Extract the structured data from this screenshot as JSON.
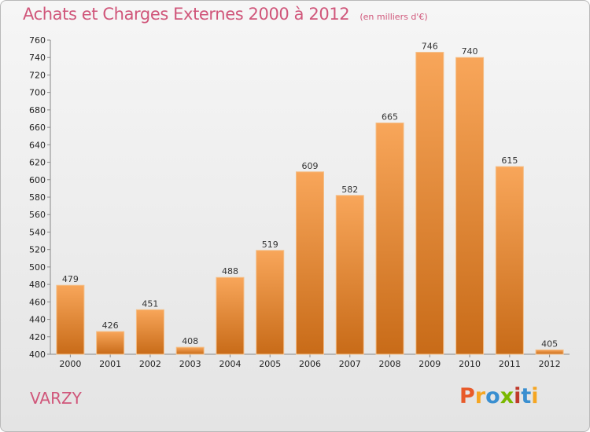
{
  "chart_data": {
    "type": "bar",
    "title": "Achats et Charges Externes 2000 à 2012",
    "subtitle": "(en milliers d'€)",
    "xlabel": "",
    "ylabel": "",
    "categories": [
      "2000",
      "2001",
      "2002",
      "2003",
      "2004",
      "2005",
      "2006",
      "2007",
      "2008",
      "2009",
      "2010",
      "2011",
      "2012"
    ],
    "values": [
      479,
      426,
      451,
      408,
      488,
      519,
      609,
      582,
      665,
      746,
      740,
      615,
      405
    ],
    "ylim": [
      400,
      760
    ],
    "ytick_step": 20,
    "grid": false,
    "legend": "none",
    "bar_color_top": "#f8a65a",
    "bar_color_bottom": "#c86b18"
  },
  "footer": {
    "commune": "VARZY",
    "logo_text": "Proxiti",
    "logo_colors": [
      "#e85b2a",
      "#f5a623",
      "#3a8fd0",
      "#7ab800",
      "#c0392b",
      "#3a8fd0",
      "#f5a623"
    ]
  }
}
